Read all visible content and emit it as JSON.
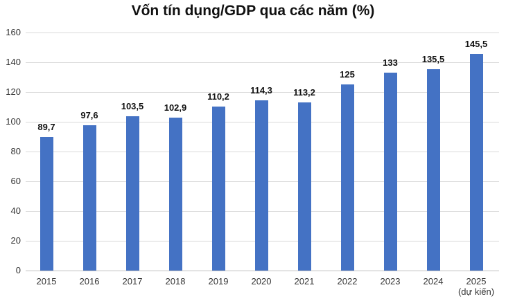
{
  "chart_data": {
    "type": "bar",
    "title": "Vốn tín dụng/GDP qua các năm (%)",
    "xlabel": "",
    "ylabel": "",
    "ylim": [
      0,
      160
    ],
    "yticks": [
      0,
      20,
      40,
      60,
      80,
      100,
      120,
      140,
      160
    ],
    "grid": true,
    "legend": null,
    "bar_color": "#4472c4",
    "categories": [
      "2015",
      "2016",
      "2017",
      "2018",
      "2019",
      "2020",
      "2021",
      "2022",
      "2023",
      "2024",
      "2025 (dự kiến)"
    ],
    "values": [
      89.7,
      97.6,
      103.5,
      102.9,
      110.2,
      114.3,
      113.2,
      125,
      133,
      135.5,
      145.5
    ],
    "value_labels": [
      "89,7",
      "97,6",
      "103,5",
      "102,9",
      "110,2",
      "114,3",
      "113,2",
      "125",
      "133",
      "135,5",
      "145,5"
    ],
    "x_tick_labels": [
      {
        "line1": "2015",
        "line2": ""
      },
      {
        "line1": "2016",
        "line2": ""
      },
      {
        "line1": "2017",
        "line2": ""
      },
      {
        "line1": "2018",
        "line2": ""
      },
      {
        "line1": "2019",
        "line2": ""
      },
      {
        "line1": "2020",
        "line2": ""
      },
      {
        "line1": "2021",
        "line2": ""
      },
      {
        "line1": "2022",
        "line2": ""
      },
      {
        "line1": "2023",
        "line2": ""
      },
      {
        "line1": "2024",
        "line2": ""
      },
      {
        "line1": "2025",
        "line2": "(dự kiến)"
      }
    ]
  }
}
